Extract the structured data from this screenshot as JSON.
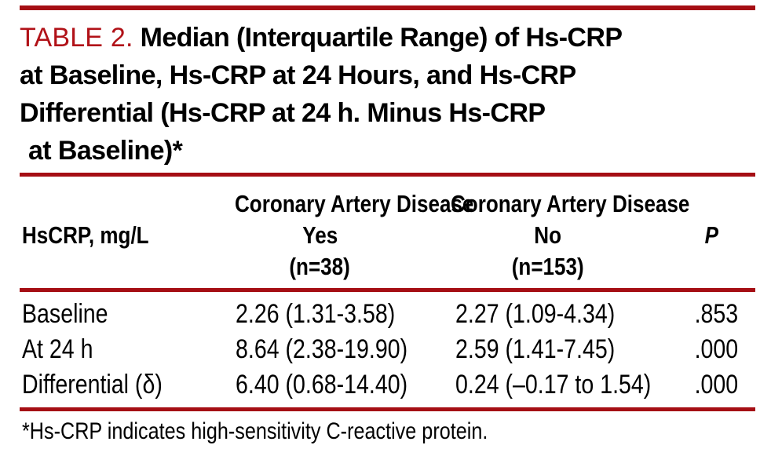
{
  "accent": {
    "rule_color": "#a50e14",
    "label_color": "#b11218"
  },
  "title": {
    "label": "TABLE 2.",
    "line1": "Median (Interquartile Range) of Hs-CRP",
    "line2": "at Baseline, Hs-CRP at 24 Hours, and Hs-CRP",
    "line3": "Differential (Hs-CRP at 24 h. Minus Hs-CRP",
    "line4": "at Baseline)*"
  },
  "table": {
    "row_header_label": "HsCRP, mg/L",
    "p_label": "P",
    "col_groups": [
      {
        "title": "Coronary Artery Disease",
        "sub": "Yes",
        "n": "(n=38)"
      },
      {
        "title": "Coronary Artery Disease",
        "sub": "No",
        "n": "(n=153)"
      }
    ],
    "rows": [
      {
        "label": "Baseline",
        "cad_yes": "2.26 (1.31-3.58)",
        "cad_no": "2.27 (1.09-4.34)",
        "p": ".853"
      },
      {
        "label": "At 24 h",
        "cad_yes": "8.64 (2.38-19.90)",
        "cad_no": "2.59 (1.41-7.45)",
        "p": ".000"
      },
      {
        "label": "Differential (δ)",
        "cad_yes": "6.40 (0.68-14.40)",
        "cad_no": "0.24 (–0.17 to 1.54)",
        "p": ".000"
      }
    ]
  },
  "footnote": "*Hs-CRP indicates high-sensitivity C-reactive protein."
}
